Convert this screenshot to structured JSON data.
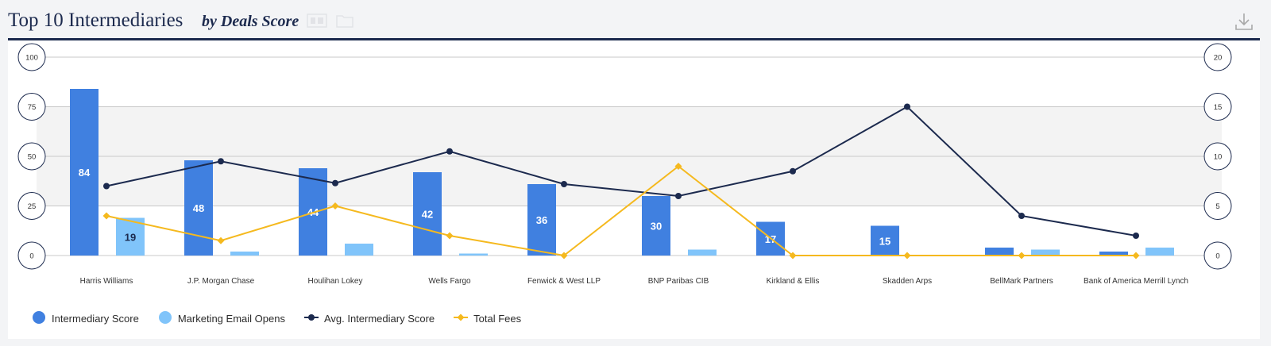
{
  "header": {
    "title": "Top 10 Intermediaries",
    "subtitle": "by Deals Score"
  },
  "colors": {
    "intermediary_score": "#4080e0",
    "email_opens": "#80c4fa",
    "avg_score": "#1c2a4e",
    "total_fees": "#f5b91e",
    "plot_band": "#f3f3f3",
    "grid": "#c8c8c8"
  },
  "icons": {
    "download": "download-icon"
  },
  "chart_data": {
    "type": "bar",
    "categories": [
      "Harris Williams",
      "J.P. Morgan Chase",
      "Houlihan Lokey",
      "Wells Fargo",
      "Fenwick & West LLP",
      "BNP Paribas CIB",
      "Kirkland & Ellis",
      "Skadden Arps",
      "BellMark Partners",
      "Bank of America Merrill Lynch"
    ],
    "series": [
      {
        "name": "Intermediary Score",
        "type": "bar",
        "axis": "left",
        "values": [
          84,
          48,
          44,
          42,
          36,
          30,
          17,
          15,
          4,
          2
        ],
        "data_labels": [
          "84",
          "48",
          "44",
          "42",
          "36",
          "30",
          "17",
          "15",
          "",
          ""
        ]
      },
      {
        "name": "Marketing Email Opens",
        "type": "bar",
        "axis": "left",
        "values": [
          19,
          2,
          6,
          1,
          0,
          3,
          0,
          0,
          3,
          4
        ],
        "data_labels": [
          "19",
          "",
          "",
          "",
          "",
          "",
          "",
          "",
          "",
          ""
        ]
      },
      {
        "name": "Avg. Intermediary Score",
        "type": "line",
        "axis": "right",
        "values": [
          7,
          9.5,
          7.3,
          10.5,
          7.2,
          6,
          8.5,
          15,
          4,
          2
        ]
      },
      {
        "name": "Total Fees",
        "type": "line",
        "axis": "right",
        "values": [
          4,
          1.5,
          5,
          2,
          0,
          9,
          0,
          0,
          0,
          0
        ]
      }
    ],
    "y_left": {
      "ylim": [
        0,
        100
      ],
      "ticks": [
        "0",
        "25",
        "50",
        "75",
        "100"
      ]
    },
    "y_right": {
      "ylim": [
        0,
        20
      ],
      "ticks": [
        "0",
        "5",
        "10",
        "15",
        "20"
      ]
    },
    "grid": true,
    "legend_position": "bottom-left"
  }
}
